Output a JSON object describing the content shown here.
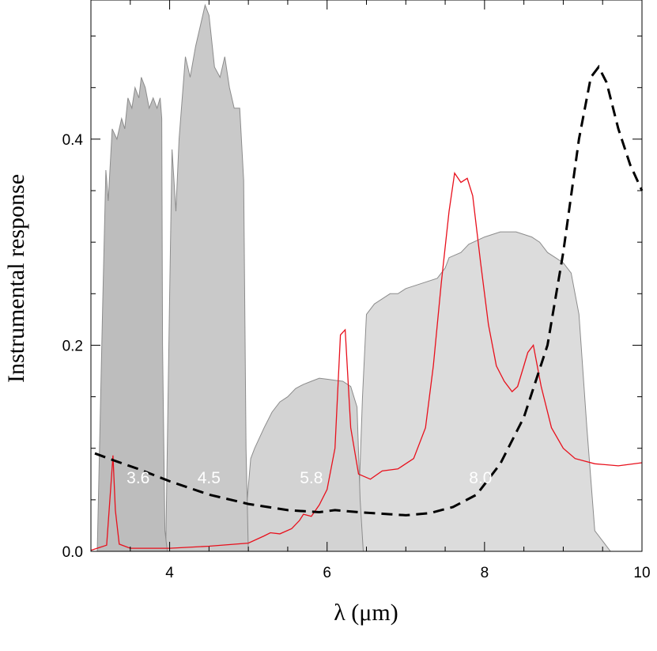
{
  "chart_data": {
    "type": "area",
    "title": "",
    "xlabel": "λ (μm)",
    "ylabel": "Instrumental response",
    "xlim": [
      3,
      10
    ],
    "ylim": [
      0,
      0.535
    ],
    "xticks": [
      4,
      6,
      8,
      10
    ],
    "xtick_labels": [
      "4",
      "6",
      "8",
      "10"
    ],
    "yticks": [
      0.0,
      0.2,
      0.4
    ],
    "ytick_labels": [
      "0.0",
      "0.2",
      "0.4"
    ],
    "x_minor_step": 0.5,
    "y_minor_step": 0.05,
    "grid": false,
    "colors": {
      "band_3_6": "#bdbdbd",
      "band_4_5": "#c9c9c9",
      "band_5_8": "#d3d3d3",
      "band_8_0": "#dcdcdc",
      "band_stroke": "#8c8c8c",
      "spectrum": "#e8101c",
      "dashed_curve": "#000000"
    },
    "bands": [
      {
        "label": "3.6",
        "label_x": 3.6,
        "label_y": 0.066,
        "points": [
          [
            3.08,
            0
          ],
          [
            3.15,
            0.24
          ],
          [
            3.19,
            0.37
          ],
          [
            3.22,
            0.34
          ],
          [
            3.27,
            0.41
          ],
          [
            3.33,
            0.4
          ],
          [
            3.39,
            0.42
          ],
          [
            3.43,
            0.41
          ],
          [
            3.47,
            0.44
          ],
          [
            3.52,
            0.43
          ],
          [
            3.56,
            0.45
          ],
          [
            3.61,
            0.44
          ],
          [
            3.64,
            0.46
          ],
          [
            3.69,
            0.45
          ],
          [
            3.74,
            0.43
          ],
          [
            3.79,
            0.44
          ],
          [
            3.84,
            0.43
          ],
          [
            3.88,
            0.44
          ],
          [
            3.9,
            0.42
          ],
          [
            3.91,
            0.2
          ],
          [
            3.94,
            0.02
          ],
          [
            3.97,
            0
          ]
        ]
      },
      {
        "label": "4.5",
        "label_x": 4.5,
        "label_y": 0.066,
        "points": [
          [
            3.95,
            0
          ],
          [
            4.0,
            0.25
          ],
          [
            4.03,
            0.39
          ],
          [
            4.08,
            0.33
          ],
          [
            4.12,
            0.4
          ],
          [
            4.2,
            0.48
          ],
          [
            4.26,
            0.46
          ],
          [
            4.33,
            0.49
          ],
          [
            4.39,
            0.51
          ],
          [
            4.45,
            0.53
          ],
          [
            4.5,
            0.52
          ],
          [
            4.57,
            0.47
          ],
          [
            4.64,
            0.46
          ],
          [
            4.7,
            0.48
          ],
          [
            4.76,
            0.45
          ],
          [
            4.82,
            0.43
          ],
          [
            4.89,
            0.43
          ],
          [
            4.94,
            0.36
          ],
          [
            4.97,
            0.1
          ],
          [
            5.0,
            0
          ]
        ]
      },
      {
        "label": "5.8",
        "label_x": 5.8,
        "label_y": 0.066,
        "points": [
          [
            4.93,
            0
          ],
          [
            5.03,
            0.09
          ],
          [
            5.08,
            0.1
          ],
          [
            5.2,
            0.12
          ],
          [
            5.3,
            0.135
          ],
          [
            5.4,
            0.145
          ],
          [
            5.5,
            0.15
          ],
          [
            5.6,
            0.158
          ],
          [
            5.7,
            0.162
          ],
          [
            5.8,
            0.165
          ],
          [
            5.9,
            0.168
          ],
          [
            6.0,
            0.167
          ],
          [
            6.1,
            0.166
          ],
          [
            6.2,
            0.165
          ],
          [
            6.3,
            0.16
          ],
          [
            6.38,
            0.14
          ],
          [
            6.42,
            0.05
          ],
          [
            6.46,
            0
          ]
        ]
      },
      {
        "label": "8.0",
        "label_x": 7.95,
        "label_y": 0.066,
        "points": [
          [
            6.38,
            0
          ],
          [
            6.45,
            0.15
          ],
          [
            6.5,
            0.23
          ],
          [
            6.6,
            0.24
          ],
          [
            6.7,
            0.245
          ],
          [
            6.8,
            0.25
          ],
          [
            6.9,
            0.25
          ],
          [
            7.0,
            0.255
          ],
          [
            7.2,
            0.26
          ],
          [
            7.4,
            0.265
          ],
          [
            7.5,
            0.275
          ],
          [
            7.55,
            0.285
          ],
          [
            7.7,
            0.29
          ],
          [
            7.8,
            0.298
          ],
          [
            8.0,
            0.305
          ],
          [
            8.2,
            0.31
          ],
          [
            8.4,
            0.31
          ],
          [
            8.6,
            0.305
          ],
          [
            8.7,
            0.3
          ],
          [
            8.8,
            0.29
          ],
          [
            8.9,
            0.285
          ],
          [
            9.0,
            0.28
          ],
          [
            9.1,
            0.27
          ],
          [
            9.2,
            0.23
          ],
          [
            9.3,
            0.12
          ],
          [
            9.4,
            0.02
          ],
          [
            9.6,
            0
          ],
          [
            10.0,
            0
          ]
        ]
      }
    ],
    "series": [
      {
        "points": [
          [
            3.0,
            0.001
          ],
          [
            3.2,
            0.006
          ],
          [
            3.25,
            0.06
          ],
          [
            3.28,
            0.093
          ],
          [
            3.31,
            0.04
          ],
          [
            3.36,
            0.007
          ],
          [
            3.5,
            0.003
          ],
          [
            4.0,
            0.003
          ],
          [
            4.5,
            0.005
          ],
          [
            5.0,
            0.008
          ],
          [
            5.2,
            0.015
          ],
          [
            5.28,
            0.018
          ],
          [
            5.4,
            0.017
          ],
          [
            5.55,
            0.022
          ],
          [
            5.65,
            0.03
          ],
          [
            5.7,
            0.036
          ],
          [
            5.8,
            0.034
          ],
          [
            5.9,
            0.045
          ],
          [
            6.0,
            0.06
          ],
          [
            6.1,
            0.1
          ],
          [
            6.17,
            0.21
          ],
          [
            6.23,
            0.215
          ],
          [
            6.3,
            0.12
          ],
          [
            6.4,
            0.075
          ],
          [
            6.55,
            0.07
          ],
          [
            6.7,
            0.078
          ],
          [
            6.9,
            0.08
          ],
          [
            7.1,
            0.09
          ],
          [
            7.25,
            0.12
          ],
          [
            7.35,
            0.18
          ],
          [
            7.45,
            0.26
          ],
          [
            7.55,
            0.33
          ],
          [
            7.62,
            0.367
          ],
          [
            7.7,
            0.358
          ],
          [
            7.78,
            0.362
          ],
          [
            7.85,
            0.345
          ],
          [
            7.95,
            0.28
          ],
          [
            8.05,
            0.22
          ],
          [
            8.15,
            0.18
          ],
          [
            8.25,
            0.165
          ],
          [
            8.35,
            0.155
          ],
          [
            8.42,
            0.16
          ],
          [
            8.5,
            0.18
          ],
          [
            8.55,
            0.193
          ],
          [
            8.62,
            0.2
          ],
          [
            8.72,
            0.16
          ],
          [
            8.85,
            0.12
          ],
          [
            9.0,
            0.1
          ],
          [
            9.15,
            0.09
          ],
          [
            9.4,
            0.085
          ],
          [
            9.7,
            0.083
          ],
          [
            10.0,
            0.086
          ]
        ]
      },
      {
        "points": [
          [
            3.05,
            0.095
          ],
          [
            3.3,
            0.088
          ],
          [
            3.6,
            0.08
          ],
          [
            4.0,
            0.068
          ],
          [
            4.5,
            0.055
          ],
          [
            5.0,
            0.046
          ],
          [
            5.5,
            0.04
          ],
          [
            5.9,
            0.038
          ],
          [
            6.1,
            0.04
          ],
          [
            6.4,
            0.038
          ],
          [
            6.8,
            0.036
          ],
          [
            7.0,
            0.035
          ],
          [
            7.3,
            0.037
          ],
          [
            7.6,
            0.043
          ],
          [
            7.9,
            0.055
          ],
          [
            8.2,
            0.085
          ],
          [
            8.5,
            0.13
          ],
          [
            8.8,
            0.2
          ],
          [
            9.0,
            0.29
          ],
          [
            9.2,
            0.4
          ],
          [
            9.35,
            0.46
          ],
          [
            9.45,
            0.47
          ],
          [
            9.55,
            0.455
          ],
          [
            9.7,
            0.41
          ],
          [
            9.85,
            0.375
          ],
          [
            10.0,
            0.35
          ]
        ]
      }
    ]
  }
}
